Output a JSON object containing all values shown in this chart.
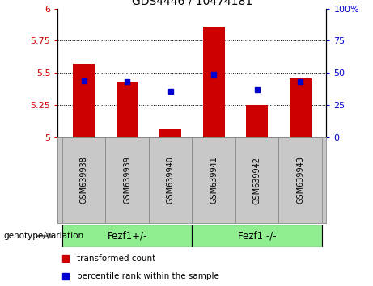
{
  "title": "GDS4446 / 10474181",
  "samples": [
    "GSM639938",
    "GSM639939",
    "GSM639940",
    "GSM639941",
    "GSM639942",
    "GSM639943"
  ],
  "red_values": [
    5.57,
    5.43,
    5.06,
    5.86,
    5.25,
    5.46
  ],
  "blue_percentiles": [
    44,
    43,
    36,
    49,
    37,
    43
  ],
  "ylim_left": [
    5.0,
    6.0
  ],
  "ylim_right": [
    0,
    100
  ],
  "left_ticks": [
    5.0,
    5.25,
    5.5,
    5.75,
    6.0
  ],
  "right_ticks": [
    0,
    25,
    50,
    75,
    100
  ],
  "left_tick_labels": [
    "5",
    "5.25",
    "5.5",
    "5.75",
    "6"
  ],
  "right_tick_labels": [
    "0",
    "25",
    "50",
    "75",
    "100%"
  ],
  "group1_label": "Fezf1+/-",
  "group2_label": "Fezf1 -/-",
  "group_color": "#90EE90",
  "genotype_label": "genotype/variation",
  "bar_color": "#CC0000",
  "dot_color": "#0000CC",
  "base_value": 5.0,
  "plot_bg_color": "#FFFFFF",
  "label_transformed": "transformed count",
  "label_percentile": "percentile rank within the sample",
  "grid_ticks": [
    5.25,
    5.5,
    5.75
  ]
}
